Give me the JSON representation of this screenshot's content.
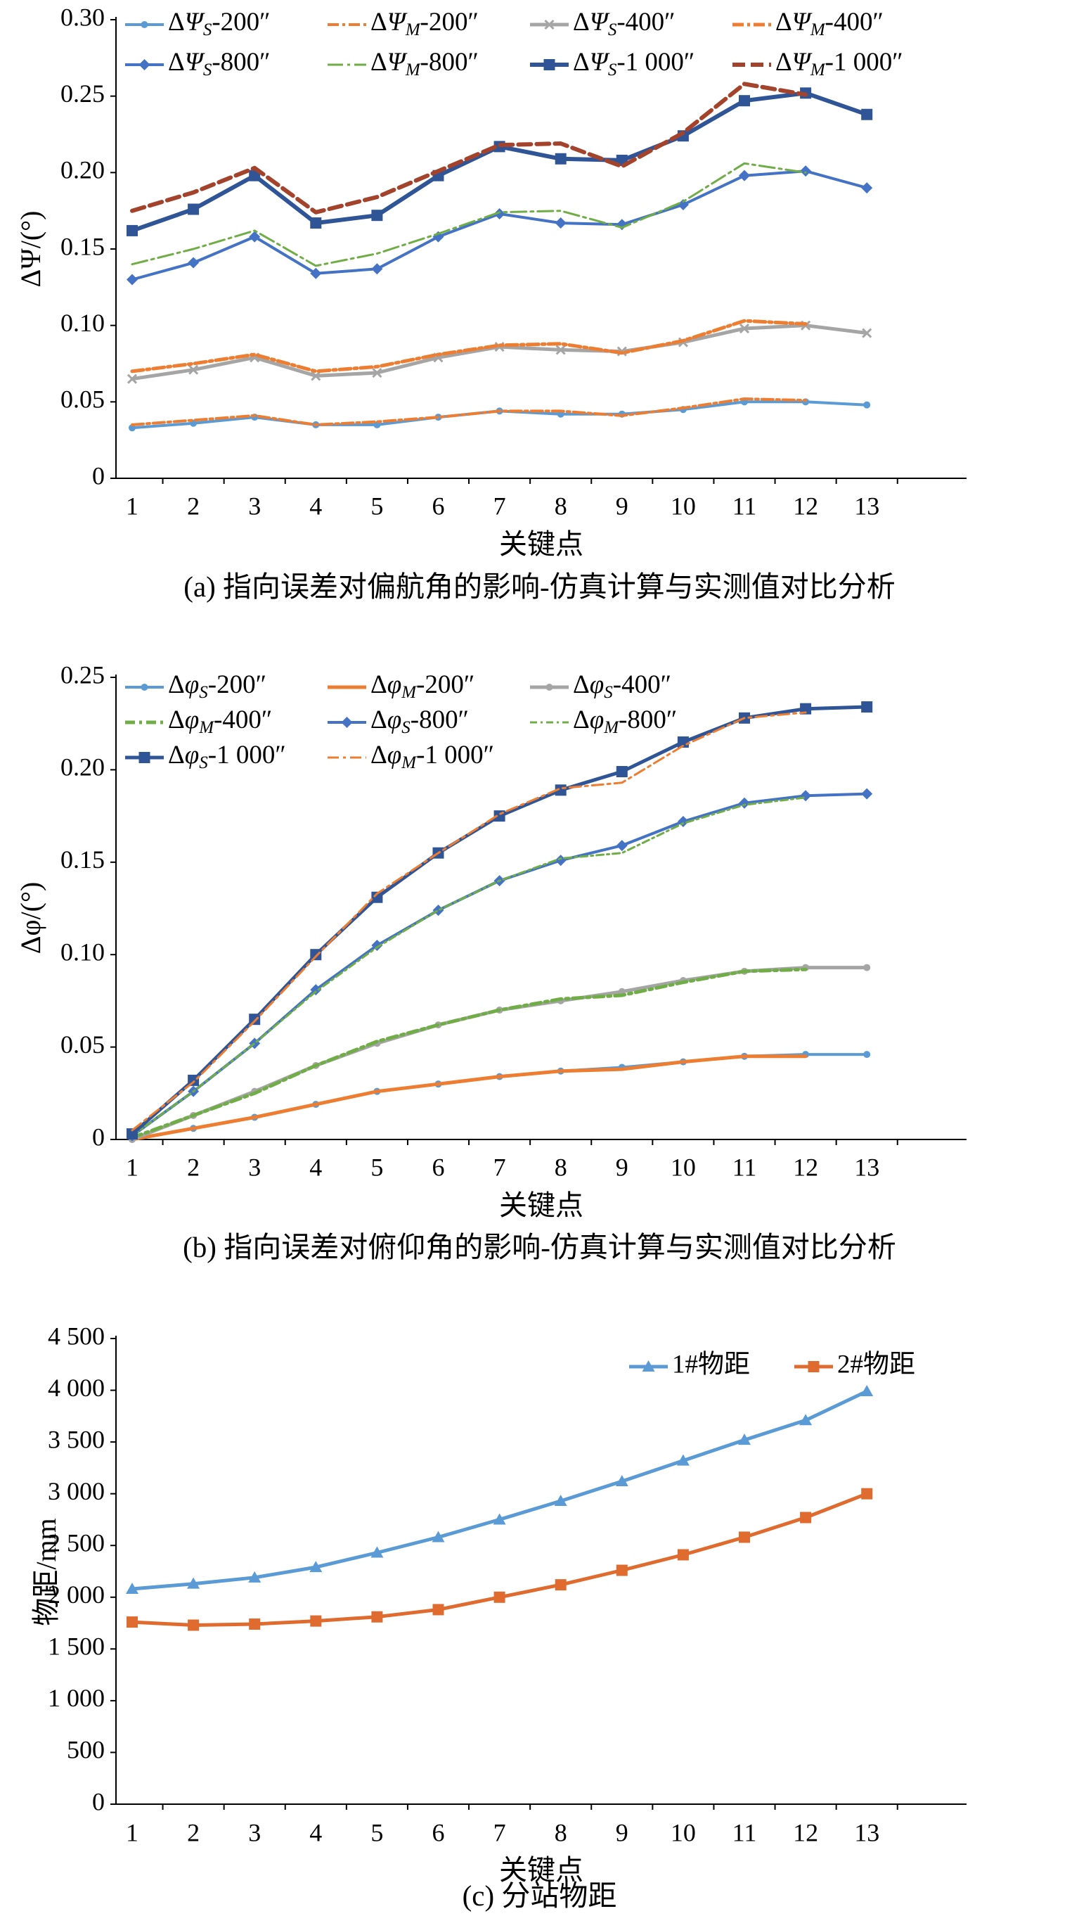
{
  "chart_data": [
    {
      "id": "a",
      "type": "line",
      "caption": "(a) 指向误差对偏航角的影响-仿真计算与实测值对比分析",
      "xlabel": "关键点",
      "ylabel": "ΔΨ/(°)",
      "categories": [
        "1",
        "2",
        "3",
        "4",
        "5",
        "6",
        "7",
        "8",
        "9",
        "10",
        "11",
        "12",
        "13"
      ],
      "ylim": [
        0,
        0.3
      ],
      "yticks": [
        "0",
        "0.05",
        "0.10",
        "0.15",
        "0.20",
        "0.25",
        "0.30"
      ],
      "yticks_values": [
        0,
        0.05,
        0.1,
        0.15,
        0.2,
        0.25,
        0.3
      ],
      "legend_position": "top",
      "legend_columns": 4,
      "series": [
        {
          "name": "ΔΨS-200″",
          "sym": "Ψ",
          "sub": "S",
          "sec": "200″",
          "color": "#5b9bd5",
          "dash": "",
          "width": 4,
          "marker": "dot",
          "values": [
            0.033,
            0.036,
            0.04,
            0.035,
            0.035,
            0.04,
            0.044,
            0.042,
            0.042,
            0.045,
            0.05,
            0.05,
            0.048
          ]
        },
        {
          "name": "ΔΨM-200″",
          "sym": "Ψ",
          "sub": "M",
          "sec": "200″",
          "color": "#ed7d31",
          "dash": "16 5 4 5",
          "width": 4,
          "marker": "none",
          "values": [
            0.035,
            0.038,
            0.041,
            0.035,
            0.037,
            0.04,
            0.044,
            0.044,
            0.041,
            0.046,
            0.052,
            0.051,
            null
          ]
        },
        {
          "name": "ΔΨS-400″",
          "sym": "Ψ",
          "sub": "S",
          "sec": "400″",
          "color": "#a5a5a5",
          "dash": "",
          "width": 5,
          "marker": "x",
          "values": [
            0.065,
            0.071,
            0.079,
            0.067,
            0.069,
            0.079,
            0.086,
            0.084,
            0.083,
            0.089,
            0.098,
            0.1,
            0.095
          ]
        },
        {
          "name": "ΔΨM-400″",
          "sym": "Ψ",
          "sub": "M",
          "sec": "400″",
          "color": "#ed7d31",
          "dash": "16 5 4 5",
          "width": 5,
          "marker": "none",
          "values": [
            0.07,
            0.075,
            0.081,
            0.07,
            0.073,
            0.081,
            0.087,
            0.088,
            0.082,
            0.09,
            0.103,
            0.101,
            null
          ]
        },
        {
          "name": "ΔΨS-800″",
          "sym": "Ψ",
          "sub": "S",
          "sec": "800″",
          "color": "#4472c4",
          "dash": "",
          "width": 4,
          "marker": "diamond",
          "values": [
            0.13,
            0.141,
            0.158,
            0.134,
            0.137,
            0.158,
            0.173,
            0.167,
            0.166,
            0.179,
            0.198,
            0.201,
            0.19
          ]
        },
        {
          "name": "ΔΨM-800″",
          "sym": "Ψ",
          "sub": "M",
          "sec": "800″",
          "color": "#70ad47",
          "dash": "22 6 4 6",
          "width": 3,
          "marker": "none",
          "values": [
            0.14,
            0.15,
            0.162,
            0.139,
            0.147,
            0.16,
            0.174,
            0.175,
            0.164,
            0.181,
            0.206,
            0.2,
            null
          ]
        },
        {
          "name": "ΔΨS-1 000″",
          "sym": "Ψ",
          "sub": "S",
          "sec": "1 000″",
          "color": "#2f5597",
          "dash": "",
          "width": 6,
          "marker": "square",
          "values": [
            0.162,
            0.176,
            0.198,
            0.167,
            0.172,
            0.198,
            0.217,
            0.209,
            0.208,
            0.224,
            0.247,
            0.252,
            0.238
          ]
        },
        {
          "name": "ΔΨM-1 000″",
          "sym": "Ψ",
          "sub": "M",
          "sec": "1 000″",
          "color": "#a4432b",
          "dash": "18 8",
          "width": 6,
          "marker": "none",
          "values": [
            0.175,
            0.187,
            0.203,
            0.174,
            0.184,
            0.201,
            0.218,
            0.219,
            0.204,
            0.226,
            0.258,
            0.251,
            null
          ]
        }
      ]
    },
    {
      "id": "b",
      "type": "line",
      "caption": "(b) 指向误差对俯仰角的影响-仿真计算与实测值对比分析",
      "xlabel": "关键点",
      "ylabel": "Δφ/(°)",
      "categories": [
        "1",
        "2",
        "3",
        "4",
        "5",
        "6",
        "7",
        "8",
        "9",
        "10",
        "11",
        "12",
        "13"
      ],
      "ylim": [
        0,
        0.25
      ],
      "yticks": [
        "0",
        "0.05",
        "0.10",
        "0.15",
        "0.20",
        "0.25"
      ],
      "yticks_values": [
        0,
        0.05,
        0.1,
        0.15,
        0.2,
        0.25
      ],
      "legend_position": "top",
      "legend_columns": 3,
      "series": [
        {
          "name": "ΔφS-200″",
          "sym": "φ",
          "sub": "S",
          "sec": "200″",
          "color": "#5b9bd5",
          "dash": "",
          "width": 4,
          "marker": "dot",
          "values": [
            0.0,
            0.006,
            0.012,
            0.019,
            0.026,
            0.03,
            0.034,
            0.037,
            0.039,
            0.042,
            0.045,
            0.046,
            0.046
          ]
        },
        {
          "name": "ΔφM-200″",
          "sym": "φ",
          "sub": "M",
          "sec": "200″",
          "color": "#ed7d31",
          "dash": "",
          "width": 5,
          "marker": "none",
          "values": [
            0.0,
            0.006,
            0.012,
            0.019,
            0.026,
            0.03,
            0.034,
            0.037,
            0.038,
            0.042,
            0.045,
            0.045,
            null
          ]
        },
        {
          "name": "ΔφS-400″",
          "sym": "φ",
          "sub": "S",
          "sec": "400″",
          "color": "#a5a5a5",
          "dash": "",
          "width": 5,
          "marker": "dot",
          "values": [
            0.0,
            0.013,
            0.026,
            0.04,
            0.052,
            0.062,
            0.07,
            0.075,
            0.08,
            0.086,
            0.091,
            0.093,
            0.093
          ]
        },
        {
          "name": "ΔφM-400″",
          "sym": "φ",
          "sub": "M",
          "sec": "400″",
          "color": "#70ad47",
          "dash": "14 6 4 6",
          "width": 5,
          "marker": "none",
          "values": [
            0.001,
            0.013,
            0.025,
            0.04,
            0.053,
            0.062,
            0.07,
            0.076,
            0.078,
            0.085,
            0.091,
            0.092,
            null
          ]
        },
        {
          "name": "ΔφS-800″",
          "sym": "φ",
          "sub": "S",
          "sec": "800″",
          "color": "#4472c4",
          "dash": "",
          "width": 4,
          "marker": "diamond",
          "values": [
            0.002,
            0.026,
            0.052,
            0.081,
            0.105,
            0.124,
            0.14,
            0.151,
            0.159,
            0.172,
            0.182,
            0.186,
            0.187
          ]
        },
        {
          "name": "ΔφM-800″",
          "sym": "φ",
          "sub": "M",
          "sec": "800″",
          "color": "#70ad47",
          "dash": "10 5 3 5",
          "width": 3,
          "marker": "none",
          "values": [
            0.002,
            0.026,
            0.052,
            0.08,
            0.104,
            0.124,
            0.14,
            0.152,
            0.155,
            0.171,
            0.181,
            0.185,
            null
          ]
        },
        {
          "name": "ΔφS-1 000″",
          "sym": "φ",
          "sub": "S",
          "sec": "1 000″",
          "color": "#2f5597",
          "dash": "",
          "width": 5,
          "marker": "square",
          "values": [
            0.003,
            0.032,
            0.065,
            0.1,
            0.131,
            0.155,
            0.175,
            0.189,
            0.199,
            0.215,
            0.228,
            0.233,
            0.234
          ]
        },
        {
          "name": "ΔφM-1 000″",
          "sym": "φ",
          "sub": "M",
          "sec": "1 000″",
          "color": "#ed7d31",
          "dash": "16 6 4 6",
          "width": 3,
          "marker": "none",
          "values": [
            0.005,
            0.031,
            0.064,
            0.099,
            0.133,
            0.155,
            0.176,
            0.19,
            0.193,
            0.213,
            0.228,
            0.231,
            null
          ]
        }
      ]
    },
    {
      "id": "c",
      "type": "line",
      "caption": "(c) 分站物距",
      "xlabel": "关键点",
      "ylabel": "物距/mm",
      "categories": [
        "1",
        "2",
        "3",
        "4",
        "5",
        "6",
        "7",
        "8",
        "9",
        "10",
        "11",
        "12",
        "13"
      ],
      "ylim": [
        0,
        4500
      ],
      "yticks": [
        "0",
        "500",
        "1 000",
        "1 500",
        "2 000",
        "2 500",
        "3 000",
        "3 500",
        "4 000",
        "4 500"
      ],
      "yticks_values": [
        0,
        500,
        1000,
        1500,
        2000,
        2500,
        3000,
        3500,
        4000,
        4500
      ],
      "legend_position": "top-right",
      "legend_columns": 2,
      "series": [
        {
          "name": "1#物距",
          "color": "#5b9bd5",
          "dash": "",
          "width": 5,
          "marker": "triangle",
          "values": [
            2080,
            2130,
            2190,
            2290,
            2430,
            2580,
            2750,
            2930,
            3120,
            3320,
            3520,
            3710,
            3990
          ]
        },
        {
          "name": "2#物距",
          "color": "#e06b2e",
          "dash": "",
          "width": 5,
          "marker": "square",
          "values": [
            1760,
            1730,
            1740,
            1770,
            1810,
            1880,
            2000,
            2120,
            2260,
            2410,
            2580,
            2770,
            3000
          ]
        }
      ]
    }
  ],
  "colors": {
    "axis": "#000000",
    "background": "#ffffff"
  }
}
